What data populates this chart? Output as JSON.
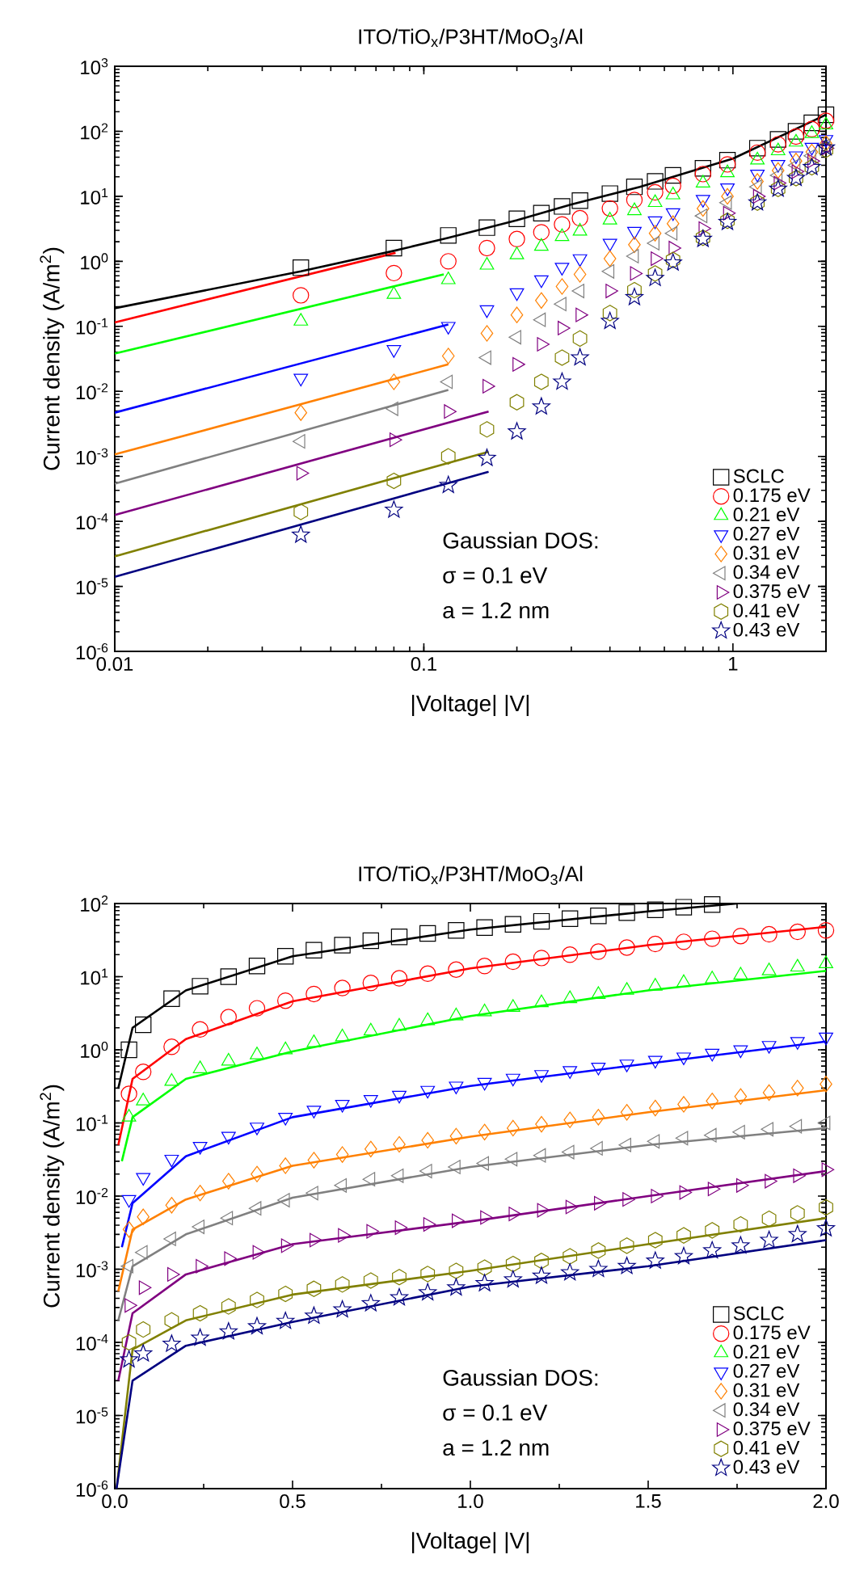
{
  "chart_data": [
    {
      "type": "scatter",
      "title": "ITO/TiO$_{x}$/P3HT/MoO$_{3}$/Al",
      "xlabel": "|Voltage| |V|",
      "ylabel": "Current density (A/m$^{2}$)",
      "log": "xy",
      "legend": "bottom right",
      "xlim": [
        0.01,
        2
      ],
      "ylim": [
        1e-06,
        1000
      ],
      "xticks": [
        0.01,
        0.1,
        1
      ],
      "yticks": [
        {
          "value": 1e-06,
          "label": "10$^{-6}$"
        },
        {
          "value": 1e-05,
          "label": "10$^{-5}$"
        },
        {
          "value": 0.0001,
          "label": "10$^{-4}$"
        },
        {
          "value": 0.001,
          "label": "10$^{-3}$"
        },
        {
          "value": 0.01,
          "label": "10$^{-2}$"
        },
        {
          "value": 0.1,
          "label": "10$^{-1}$"
        },
        {
          "value": 1,
          "label": "10$^{0}$"
        },
        {
          "value": 10,
          "label": "10$^{1}$"
        },
        {
          "value": 100,
          "label": "10$^{2}$"
        },
        {
          "value": 1000,
          "label": "10$^{3}$"
        }
      ],
      "annotations": [
        "Gaussian DOS:",
        "σ = 0.1 eV",
        "a = 1.2 nm"
      ],
      "x": [
        0.04,
        0.08,
        0.12,
        0.16,
        0.2,
        0.24,
        0.28,
        0.32,
        0.4,
        0.48,
        0.56,
        0.64,
        0.8,
        0.96,
        1.2,
        1.4,
        1.6,
        1.8,
        2.0
      ],
      "series": [
        {
          "name": "SCLC",
          "color": "#000000",
          "marker": "square",
          "values": [
            0.8,
            1.6,
            2.5,
            3.3,
            4.5,
            5.5,
            7,
            8.6,
            11,
            14,
            17,
            21,
            27,
            36,
            55,
            75,
            100,
            135,
            180
          ]
        },
        {
          "name": "0.175 eV",
          "color": "#ff0000",
          "marker": "circle",
          "values": [
            0.3,
            0.66,
            1.0,
            1.6,
            2.2,
            2.8,
            3.7,
            4.6,
            6.5,
            8.8,
            11.5,
            14.5,
            22,
            31,
            47,
            63,
            83,
            108,
            145
          ]
        },
        {
          "name": "0.21 eV",
          "color": "#00ff00",
          "marker": "triangle",
          "values": [
            0.12,
            0.31,
            0.52,
            0.87,
            1.26,
            1.7,
            2.4,
            2.9,
            4.3,
            6,
            8,
            10.5,
            16,
            23,
            36,
            50,
            68,
            92,
            125
          ]
        },
        {
          "name": "0.27 eV",
          "color": "#0000ff",
          "marker": "triangle_down",
          "values": [
            0.016,
            0.044,
            0.1,
            0.18,
            0.33,
            0.52,
            0.81,
            1.1,
            1.9,
            2.9,
            4.2,
            5.6,
            9,
            13.5,
            22,
            31,
            42,
            57,
            75
          ]
        },
        {
          "name": "0.31 eV",
          "color": "#ff8000",
          "marker": "diamond",
          "values": [
            0.0047,
            0.014,
            0.035,
            0.078,
            0.15,
            0.25,
            0.41,
            0.63,
            1.1,
            1.8,
            2.7,
            3.8,
            6.5,
            10,
            17,
            25,
            35,
            48,
            65
          ]
        },
        {
          "name": "0.34 eV",
          "color": "#808080",
          "marker": "triangle_left",
          "values": [
            0.0017,
            0.0054,
            0.014,
            0.033,
            0.068,
            0.126,
            0.22,
            0.35,
            0.7,
            1.2,
            1.9,
            2.7,
            5,
            8,
            14,
            21,
            30,
            42,
            60
          ]
        },
        {
          "name": "0.375 eV",
          "color": "#800080",
          "marker": "triangle_right",
          "values": [
            0.00055,
            0.0018,
            0.0049,
            0.012,
            0.026,
            0.053,
            0.094,
            0.15,
            0.35,
            0.65,
            1.1,
            1.6,
            3.2,
            5.5,
            10,
            16,
            24,
            35,
            55
          ]
        },
        {
          "name": "0.41 eV",
          "color": "#808000",
          "values": [
            0.00014,
            0.00042,
            0.001,
            0.0026,
            0.0068,
            0.014,
            0.033,
            0.065,
            0.16,
            0.36,
            0.65,
            1.05,
            2.3,
            4.2,
            8,
            13,
            19,
            28,
            52
          ]
        },
        {
          "name": "0.43 eV",
          "color": "#000080",
          "marker": "star",
          "values": [
            6.2e-05,
            0.00015,
            0.00036,
            0.00094,
            0.0024,
            0.0058,
            0.014,
            0.033,
            0.12,
            0.28,
            0.55,
            0.95,
            2.2,
            4,
            8,
            13,
            19,
            28,
            56
          ]
        },
        {
          "type": "line",
          "color": "#000000",
          "x": [
            0.01,
            0.04,
            0.08,
            0.12,
            0.2,
            0.3,
            0.5,
            1,
            2
          ],
          "values": [
            0.19,
            0.7,
            1.45,
            2.3,
            4.3,
            7.5,
            14,
            38,
            180
          ]
        },
        {
          "type": "line",
          "color": "#ff0000",
          "x": [
            0.01,
            0.081
          ],
          "values": [
            0.115,
            1.35
          ]
        },
        {
          "type": "line",
          "color": "#00ff00",
          "x": [
            0.01,
            0.116
          ],
          "values": [
            0.038,
            0.63
          ]
        },
        {
          "type": "line",
          "color": "#0000ff",
          "x": [
            0.01,
            0.12
          ],
          "values": [
            0.0047,
            0.107
          ]
        },
        {
          "type": "line",
          "color": "#ff8000",
          "x": [
            0.01,
            0.12
          ],
          "values": [
            0.00107,
            0.026
          ]
        },
        {
          "type": "line",
          "color": "#808080",
          "x": [
            0.01,
            0.12
          ],
          "values": [
            0.00038,
            0.0105
          ]
        },
        {
          "type": "line",
          "color": "#800080",
          "x": [
            0.01,
            0.162
          ],
          "values": [
            0.000125,
            0.0049
          ]
        },
        {
          "type": "line",
          "color": "#808000",
          "x": [
            0.01,
            0.162
          ],
          "values": [
            2.9e-05,
            0.00118
          ]
        },
        {
          "type": "line",
          "color": "#000080",
          "x": [
            0.01,
            0.162
          ],
          "values": [
            1.4e-05,
            0.00058
          ]
        }
      ]
    },
    {
      "type": "scatter",
      "title": "ITO/TiO$_{x}$/P3HT/MoO$_{3}$/Al",
      "xlabel": "|Voltage| |V|",
      "ylabel": "Current density (A/m$^{2}$)",
      "log": "y",
      "legend": "bottom right",
      "xlim": [
        0,
        2
      ],
      "ylim": [
        1e-06,
        100
      ],
      "xticks": [
        {
          "value": 0,
          "label": "0.0"
        },
        0.5,
        {
          "value": 1,
          "label": "1.0"
        },
        1.5,
        {
          "value": 2,
          "label": "2.0"
        }
      ],
      "yticks": [
        {
          "value": 1e-06,
          "label": "10$^{-6}$"
        },
        {
          "value": 1e-05,
          "label": "10$^{-5}$"
        },
        {
          "value": 0.0001,
          "label": "10$^{-4}$"
        },
        {
          "value": 0.001,
          "label": "10$^{-3}$"
        },
        {
          "value": 0.01,
          "label": "10$^{-2}$"
        },
        {
          "value": 0.1,
          "label": "10$^{-1}$"
        },
        {
          "value": 1,
          "label": "10$^{0}$"
        },
        {
          "value": 10,
          "label": "10$^{1}$"
        },
        {
          "value": 100,
          "label": "10$^{2}$"
        }
      ],
      "annotations": [
        "Gaussian DOS:",
        "σ = 0.1 eV",
        "a = 1.2 nm"
      ],
      "x": [
        0.04,
        0.08,
        0.16,
        0.24,
        0.32,
        0.4,
        0.48,
        0.56,
        0.64,
        0.72,
        0.8,
        0.88,
        0.96,
        1.04,
        1.12,
        1.2,
        1.28,
        1.36,
        1.44,
        1.52,
        1.6,
        1.68,
        1.76,
        1.84,
        1.92,
        2.0
      ],
      "series": [
        {
          "name": "SCLC",
          "color": "#000000",
          "marker": "square",
          "values": [
            1.0,
            2.2,
            5,
            7.4,
            10,
            14,
            19,
            23,
            27,
            31,
            35,
            39,
            43,
            47,
            52,
            57,
            62,
            68,
            75,
            82,
            89,
            97,
            null,
            null,
            null,
            null
          ]
        },
        {
          "name": "0.175 eV",
          "color": "#ff0000",
          "marker": "circle",
          "values": [
            0.25,
            0.5,
            1.1,
            1.9,
            2.8,
            3.7,
            4.7,
            5.8,
            7,
            8.2,
            9.5,
            11,
            12.5,
            14,
            16,
            18,
            20,
            22,
            25,
            28,
            30,
            33,
            36,
            38,
            41,
            43
          ]
        },
        {
          "name": "0.21 eV",
          "color": "#00ff00",
          "marker": "triangle",
          "values": [
            0.12,
            0.2,
            0.37,
            0.55,
            0.7,
            0.85,
            1.0,
            1.25,
            1.5,
            1.8,
            2.1,
            2.5,
            2.9,
            3.3,
            3.8,
            4.4,
            5,
            5.7,
            6.5,
            7.4,
            8.3,
            9.3,
            10.5,
            12,
            13.5,
            15
          ]
        },
        {
          "name": "0.27 eV",
          "color": "#0000ff",
          "marker": "triangle_down",
          "values": [
            0.009,
            0.018,
            0.032,
            0.048,
            0.066,
            0.088,
            0.12,
            0.15,
            0.18,
            0.21,
            0.24,
            0.28,
            0.32,
            0.36,
            0.41,
            0.46,
            0.52,
            0.58,
            0.64,
            0.72,
            0.8,
            0.9,
            1.0,
            1.15,
            1.3,
            1.5
          ]
        },
        {
          "name": "0.31 eV",
          "color": "#ff8000",
          "marker": "diamond",
          "values": [
            0.0035,
            0.0052,
            0.0075,
            0.011,
            0.016,
            0.02,
            0.026,
            0.031,
            0.037,
            0.044,
            0.051,
            0.058,
            0.066,
            0.075,
            0.085,
            0.096,
            0.11,
            0.12,
            0.14,
            0.16,
            0.18,
            0.2,
            0.23,
            0.26,
            0.3,
            0.34
          ]
        },
        {
          "name": "0.34 eV",
          "color": "#808080",
          "marker": "triangle_left",
          "values": [
            0.0011,
            0.0017,
            0.0026,
            0.0038,
            0.005,
            0.0068,
            0.0088,
            0.011,
            0.014,
            0.017,
            0.019,
            0.022,
            0.025,
            0.028,
            0.032,
            0.036,
            0.04,
            0.045,
            0.05,
            0.056,
            0.062,
            0.068,
            0.075,
            0.082,
            0.09,
            0.1
          ]
        },
        {
          "name": "0.375 eV",
          "color": "#800080",
          "marker": "triangle_right",
          "values": [
            0.00032,
            0.00056,
            0.00085,
            0.0011,
            0.0014,
            0.0017,
            0.0021,
            0.0025,
            0.0029,
            0.0033,
            0.0037,
            0.0041,
            0.0046,
            0.0051,
            0.0057,
            0.0064,
            0.0071,
            0.008,
            0.009,
            0.01,
            0.0112,
            0.0125,
            0.014,
            0.016,
            0.019,
            0.023
          ]
        },
        {
          "name": "0.41 eV",
          "color": "#808000",
          "values": [
            0.0001,
            0.00015,
            0.0002,
            0.00025,
            0.00031,
            0.00038,
            0.00046,
            0.00054,
            0.00062,
            0.0007,
            0.00078,
            0.00086,
            0.00095,
            0.00105,
            0.00118,
            0.0013,
            0.0015,
            0.0018,
            0.0021,
            0.0025,
            0.0029,
            0.0034,
            0.0041,
            0.0049,
            0.0058,
            0.007
          ]
        },
        {
          "name": "0.43 eV",
          "color": "#000080",
          "marker": "star",
          "values": [
            5.8e-05,
            7e-05,
            9.5e-05,
            0.000115,
            0.00014,
            0.000165,
            0.000195,
            0.00023,
            0.00028,
            0.00034,
            0.00041,
            0.00048,
            0.00056,
            0.00064,
            0.00072,
            0.00081,
            0.0009,
            0.001,
            0.0011,
            0.0013,
            0.0015,
            0.0018,
            0.0021,
            0.0025,
            0.003,
            0.0036
          ]
        },
        {
          "type": "line",
          "color": "#000000",
          "x": [
            0.01,
            0.05,
            0.2,
            0.5,
            1.0,
            1.5,
            1.75
          ],
          "values": [
            0.3,
            2,
            6.5,
            19,
            44,
            78,
            100
          ]
        },
        {
          "type": "line",
          "color": "#ff0000",
          "x": [
            0.01,
            0.05,
            0.2,
            0.5,
            1.0,
            1.5,
            2.0
          ],
          "values": [
            0.05,
            0.4,
            1.4,
            4.6,
            13,
            27,
            48
          ]
        },
        {
          "type": "line",
          "color": "#00ff00",
          "x": [
            0.02,
            0.05,
            0.2,
            0.5,
            1.0,
            1.5,
            2.0
          ],
          "values": [
            0.03,
            0.12,
            0.4,
            0.95,
            2.9,
            6.5,
            12
          ]
        },
        {
          "type": "line",
          "color": "#0000ff",
          "x": [
            0.02,
            0.05,
            0.2,
            0.5,
            1.0,
            1.5,
            2.0
          ],
          "values": [
            0.002,
            0.008,
            0.035,
            0.12,
            0.32,
            0.65,
            1.3
          ]
        },
        {
          "type": "line",
          "color": "#ff8000",
          "x": [
            0.01,
            0.05,
            0.2,
            0.5,
            1.0,
            1.5,
            2.0
          ],
          "values": [
            0.0005,
            0.0035,
            0.009,
            0.026,
            0.065,
            0.14,
            0.28
          ]
        },
        {
          "type": "line",
          "color": "#808080",
          "x": [
            0.01,
            0.05,
            0.2,
            0.5,
            1.0,
            1.5,
            2.0
          ],
          "values": [
            0.0002,
            0.0011,
            0.003,
            0.0095,
            0.025,
            0.05,
            0.085
          ]
        },
        {
          "type": "line",
          "color": "#800080",
          "x": [
            0.01,
            0.05,
            0.2,
            0.5,
            1.0,
            1.5,
            2.0
          ],
          "values": [
            3e-05,
            0.00025,
            0.00085,
            0.0022,
            0.0045,
            0.01,
            0.022
          ]
        },
        {
          "type": "line",
          "color": "#808000",
          "x": [
            0.005,
            0.05,
            0.2,
            0.5,
            1.0,
            1.5,
            2.0
          ],
          "values": [
            1e-06,
            8e-05,
            0.0002,
            0.00045,
            0.00095,
            0.0022,
            0.005
          ]
        },
        {
          "type": "line",
          "color": "#000080",
          "x": [
            0.005,
            0.05,
            0.2,
            0.5,
            1.0,
            1.5,
            2.0
          ],
          "values": [
            1e-06,
            3e-05,
            9e-05,
            0.00019,
            0.00058,
            0.0011,
            0.0025
          ]
        }
      ]
    }
  ]
}
